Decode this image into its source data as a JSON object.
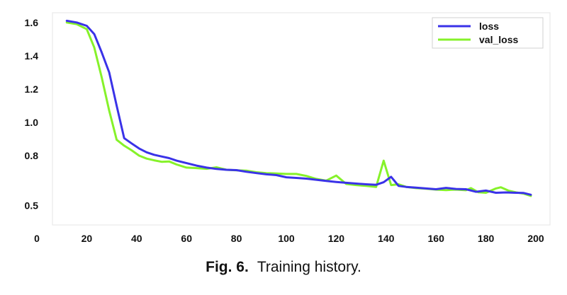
{
  "caption": {
    "label": "Fig. 6.",
    "text": "Training history."
  },
  "chart_data": {
    "type": "line",
    "title": "",
    "xlabel": "",
    "ylabel": "",
    "xlim": [
      0,
      200
    ],
    "ylim": [
      0.46,
      1.65
    ],
    "x_ticks": [
      0,
      20,
      40,
      60,
      80,
      100,
      120,
      140,
      160,
      180,
      200
    ],
    "y_ticks": [
      0.5,
      0.8,
      1.0,
      1.2,
      1.4,
      1.6
    ],
    "grid": false,
    "legend_position": "top-right",
    "series": [
      {
        "name": "loss",
        "color": "#3a32e8",
        "x": [
          12,
          16,
          20,
          23,
          26,
          29,
          32,
          35,
          38,
          41,
          44,
          47,
          50,
          53,
          56,
          60,
          64,
          68,
          72,
          76,
          80,
          84,
          88,
          92,
          96,
          100,
          104,
          108,
          112,
          116,
          120,
          124,
          128,
          132,
          136,
          139,
          142,
          145,
          148,
          152,
          156,
          160,
          164,
          168,
          172,
          176,
          180,
          184,
          188,
          192,
          195,
          198
        ],
        "y": [
          1.61,
          1.6,
          1.58,
          1.53,
          1.42,
          1.3,
          1.1,
          0.905,
          0.873,
          0.843,
          0.82,
          0.805,
          0.795,
          0.785,
          0.77,
          0.755,
          0.74,
          0.728,
          0.72,
          0.715,
          0.713,
          0.703,
          0.695,
          0.688,
          0.683,
          0.67,
          0.666,
          0.662,
          0.655,
          0.648,
          0.642,
          0.637,
          0.632,
          0.628,
          0.625,
          0.64,
          0.673,
          0.618,
          0.612,
          0.608,
          0.603,
          0.598,
          0.606,
          0.6,
          0.598,
          0.583,
          0.59,
          0.577,
          0.579,
          0.577,
          0.576,
          0.565
        ]
      },
      {
        "name": "val_loss",
        "color": "#86f22a",
        "x": [
          12,
          16,
          20,
          23,
          26,
          29,
          32,
          35,
          38,
          41,
          44,
          47,
          50,
          53,
          56,
          60,
          64,
          68,
          72,
          76,
          80,
          84,
          88,
          92,
          96,
          100,
          104,
          108,
          112,
          116,
          120,
          124,
          128,
          132,
          136,
          139,
          142,
          145,
          148,
          152,
          156,
          160,
          164,
          168,
          172,
          174,
          177,
          180,
          184,
          186,
          189,
          192,
          195,
          198
        ],
        "y": [
          1.6,
          1.59,
          1.56,
          1.45,
          1.27,
          1.07,
          0.895,
          0.86,
          0.832,
          0.8,
          0.782,
          0.772,
          0.763,
          0.765,
          0.747,
          0.728,
          0.725,
          0.721,
          0.73,
          0.715,
          0.712,
          0.71,
          0.7,
          0.695,
          0.693,
          0.69,
          0.69,
          0.678,
          0.66,
          0.65,
          0.68,
          0.63,
          0.623,
          0.618,
          0.612,
          0.77,
          0.623,
          0.628,
          0.612,
          0.605,
          0.601,
          0.596,
          0.593,
          0.596,
          0.592,
          0.605,
          0.58,
          0.577,
          0.603,
          0.61,
          0.59,
          0.58,
          0.572,
          0.558
        ]
      }
    ]
  }
}
